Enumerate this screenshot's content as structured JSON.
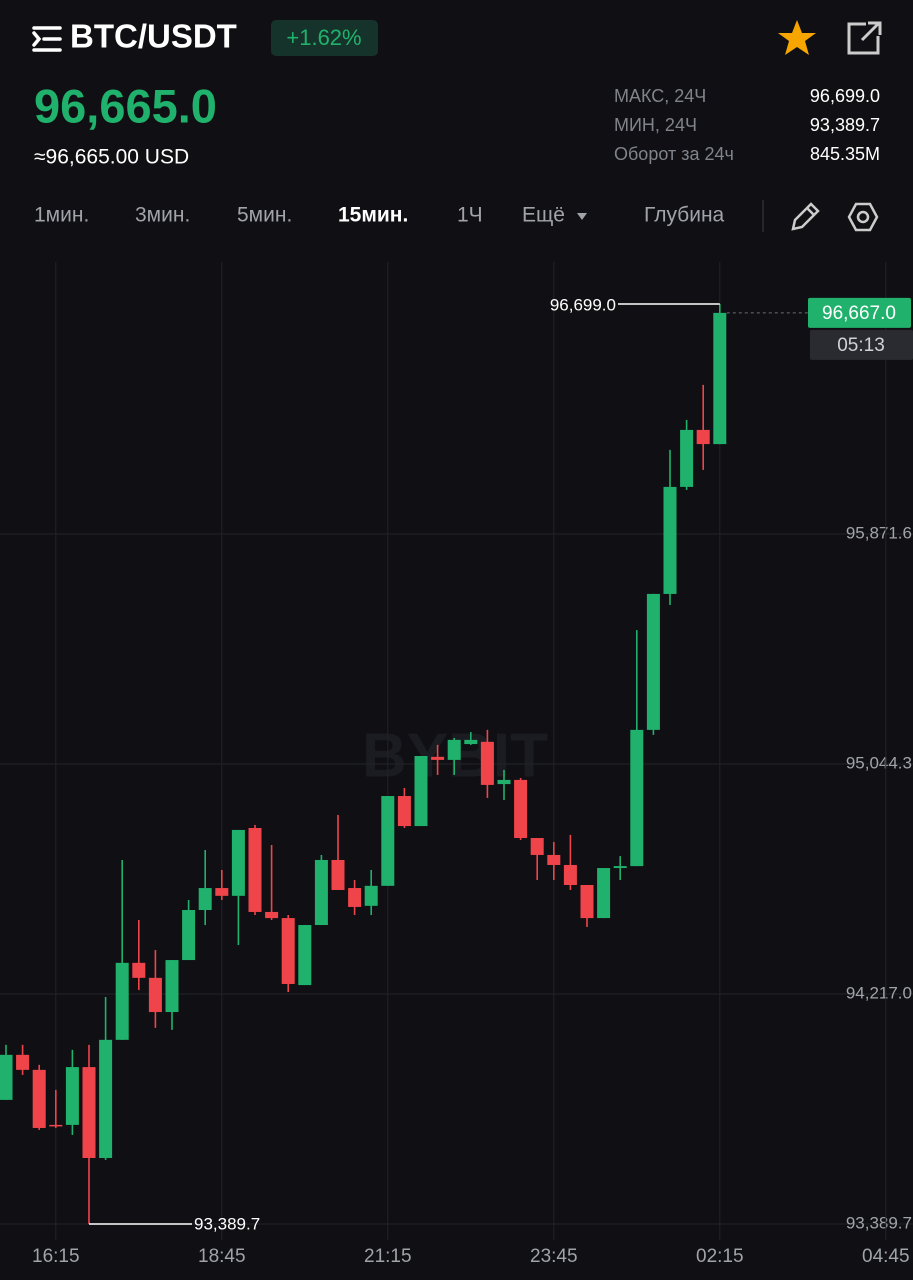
{
  "header": {
    "pair": "BTC/USDT",
    "change": "+1.62%",
    "price": "96,665.0",
    "price_usd": "≈96,665.00 USD",
    "stats": [
      {
        "label": "МАКС, 24Ч",
        "value": "96,699.0"
      },
      {
        "label": "МИН, 24Ч",
        "value": "93,389.7"
      },
      {
        "label": "Оборот за 24ч",
        "value": "845.35M"
      }
    ]
  },
  "toolbar": {
    "timeframes": [
      "1мин.",
      "3мин.",
      "5мин.",
      "15мин.",
      "1Ч"
    ],
    "active_index": 3,
    "more": "Ещё",
    "depth": "Глубина"
  },
  "chart_data": {
    "type": "candlestick",
    "watermark": "BYBIT",
    "up_color": "#20b26c",
    "down_color": "#ef454a",
    "grid": true,
    "categories": [
      null,
      null,
      null,
      "16:15",
      null,
      null,
      null,
      null,
      null,
      null,
      null,
      null,
      null,
      "18:45",
      null,
      null,
      null,
      null,
      null,
      null,
      null,
      null,
      null,
      "21:15",
      null,
      null,
      null,
      null,
      null,
      null,
      null,
      null,
      null,
      "23:45",
      null,
      null,
      null,
      null,
      null,
      null,
      null,
      null,
      null,
      "02:15",
      null,
      null,
      null,
      null,
      null,
      null,
      null,
      null,
      null,
      "04:45",
      null
    ],
    "open": [
      93836,
      93998,
      93944,
      93746,
      93746,
      93954,
      93627,
      94052,
      94329,
      94275,
      94152,
      94339,
      94519,
      94598,
      94570,
      94814,
      94512,
      94490,
      94249,
      94465,
      94699,
      94598,
      94534,
      94606,
      94929,
      94821,
      95070,
      95059,
      95116,
      95124,
      94972,
      94987,
      94778,
      94717,
      94681,
      94609,
      94490,
      94670,
      94677,
      95167,
      95656,
      96041,
      96246,
      96195,
      null,
      null,
      null,
      null,
      null,
      null,
      null,
      null,
      null,
      null,
      null
    ],
    "high": [
      94034,
      94034,
      93962,
      93872,
      94016,
      94034,
      94206,
      94699,
      94483,
      94375,
      94339,
      94555,
      94735,
      94663,
      94807,
      94825,
      94753,
      94501,
      94465,
      94717,
      94861,
      94627,
      94663,
      94929,
      94958,
      95073,
      95113,
      95138,
      95159,
      95167,
      95023,
      94994,
      94778,
      94764,
      94789,
      94609,
      94670,
      94713,
      95526,
      95656,
      96174,
      96282,
      96408,
      96699.0,
      null,
      null,
      null,
      null,
      null,
      null,
      null,
      null,
      null,
      null,
      null
    ],
    "low": [
      93836,
      93926,
      93728,
      93735,
      93710,
      93389.7,
      93620,
      94052,
      94231,
      94095,
      94088,
      94339,
      94465,
      94555,
      94393,
      94501,
      94483,
      94224,
      94249,
      94465,
      94591,
      94501,
      94501,
      94606,
      94814,
      94821,
      95005,
      95005,
      95113,
      94922,
      94915,
      94771,
      94627,
      94627,
      94591,
      94458,
      94490,
      94627,
      94677,
      95149,
      95616,
      96030,
      96102,
      96195,
      null,
      null,
      null,
      null,
      null,
      null,
      null,
      null,
      null,
      null,
      null
    ],
    "close": [
      93998,
      93944,
      93735,
      93742,
      93954,
      93627,
      94052,
      94329,
      94275,
      94152,
      94339,
      94519,
      94598,
      94570,
      94807,
      94512,
      94490,
      94253,
      94465,
      94699,
      94591,
      94530,
      94606,
      94929,
      94821,
      95073,
      95059,
      95131,
      95131,
      94969,
      94987,
      94778,
      94717,
      94681,
      94609,
      94490,
      94670,
      94677,
      95167,
      95656,
      96041,
      96246,
      96195,
      96667.0,
      null,
      null,
      null,
      null,
      null,
      null,
      null,
      null,
      null,
      null,
      null
    ],
    "ylim": [
      93332,
      96850
    ],
    "yticks": [
      {
        "value": 93389.7,
        "label": "93,389.7"
      },
      {
        "value": 94217.0,
        "label": "94,217.0"
      },
      {
        "value": 95044.3,
        "label": "95,044.3"
      },
      {
        "value": 95871.6,
        "label": "95,871.6"
      }
    ],
    "high_marker": {
      "value": 96699.0,
      "label": "96,699.0"
    },
    "low_marker": {
      "value": 93389.7,
      "label": "93,389.7"
    },
    "last_price": {
      "value": 96667.0,
      "label": "96,667.0"
    },
    "countdown": "05:13"
  }
}
